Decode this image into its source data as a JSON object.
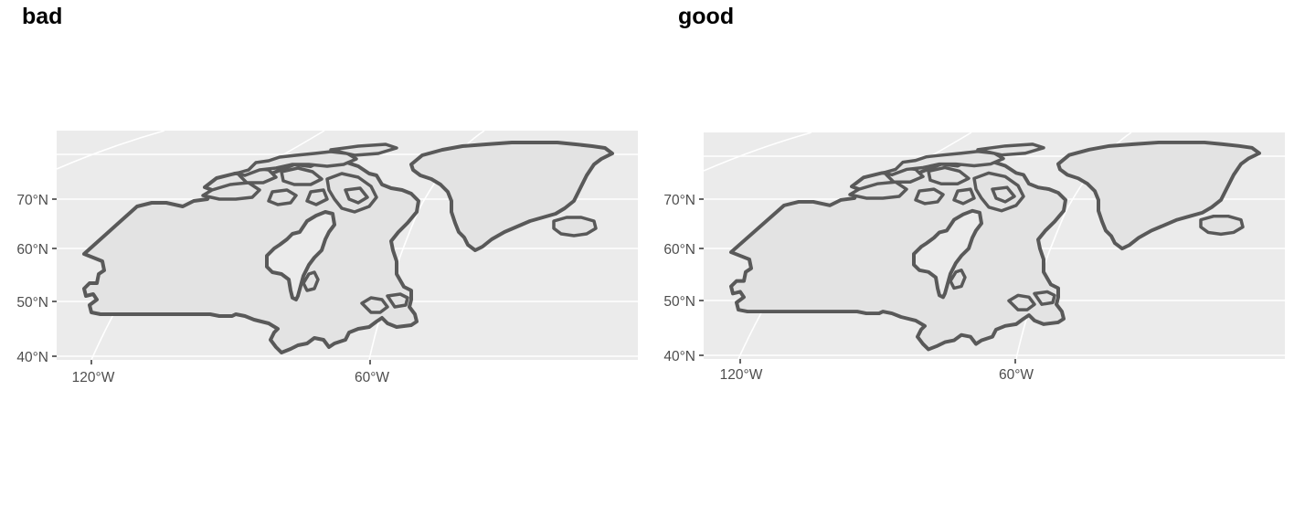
{
  "panels": [
    {
      "title": "bad",
      "y_ticks": [
        "70°N",
        "60°N",
        "50°N",
        "40°N"
      ],
      "x_ticks": [
        "120°W",
        "60°W"
      ]
    },
    {
      "title": "good",
      "y_ticks": [
        "70°N",
        "60°N",
        "50°N",
        "40°N"
      ],
      "x_ticks": [
        "120°W",
        "60°W"
      ]
    }
  ],
  "colors": {
    "panel_background": "#ebebeb",
    "land_fill": "#e3e3e3",
    "land_outline": "#595959",
    "gridlines": "#ffffff"
  }
}
